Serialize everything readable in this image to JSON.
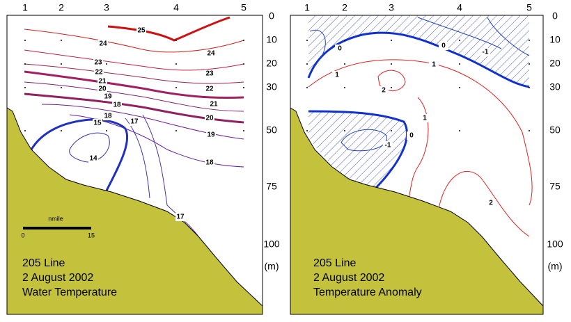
{
  "panels": [
    {
      "stations": [
        "1",
        "2",
        "3",
        "4",
        "5"
      ],
      "depths": [
        "0",
        "10",
        "20",
        "30",
        "50",
        "75",
        "100"
      ],
      "unit": "(m)",
      "caption": [
        "205 Line",
        "2 August 2002",
        "Water Temperature"
      ],
      "scale": {
        "label": "nmile",
        "start": "0",
        "end": "15"
      },
      "contour_labels": [
        "25",
        "24",
        "24",
        "23",
        "23",
        "22",
        "22",
        "21",
        "21",
        "20",
        "20",
        "19",
        "18",
        "18",
        "17",
        "19",
        "15",
        "18",
        "14",
        "17"
      ]
    },
    {
      "stations": [
        "1",
        "2",
        "3",
        "4",
        "5"
      ],
      "depths": [
        "0",
        "10",
        "20",
        "30",
        "50",
        "75",
        "100"
      ],
      "unit": "(m)",
      "caption": [
        "205 Line",
        "2 August 2002",
        "Temperature Anomaly"
      ],
      "contour_labels": [
        "0",
        "0",
        "-1",
        "1",
        "1",
        "2",
        "1",
        "0",
        "-1",
        "2"
      ]
    }
  ]
}
